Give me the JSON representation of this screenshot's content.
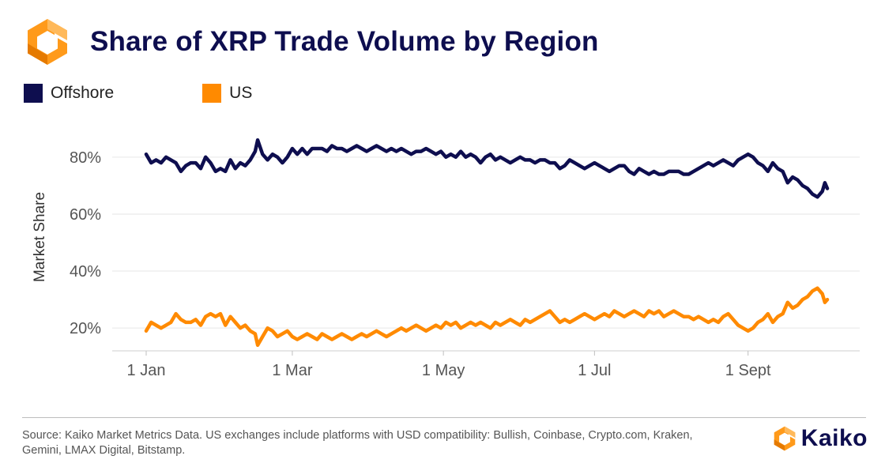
{
  "header": {
    "title": "Share of XRP Trade Volume by Region",
    "logo_icon": "kaiko-hexagon-icon"
  },
  "legend": [
    {
      "label": "Offshore",
      "color": "#0e0e4f"
    },
    {
      "label": "US",
      "color": "#ff8a00"
    }
  ],
  "chart_data": {
    "type": "line",
    "title": "Share of XRP Trade Volume by Region",
    "xlabel": "",
    "ylabel": "Market Share",
    "x_range": [
      1,
      276
    ],
    "x_ticks": [
      {
        "label": "1 Jan",
        "day": 1
      },
      {
        "label": "1 Mar",
        "day": 60
      },
      {
        "label": "1 May",
        "day": 121
      },
      {
        "label": "1 Jul",
        "day": 182
      },
      {
        "label": "1 Sept",
        "day": 244
      }
    ],
    "ylim": [
      12,
      88
    ],
    "y_ticks": [
      20,
      40,
      60,
      80
    ],
    "y_tick_format": "%",
    "grid": true,
    "legend_position": "top-left",
    "series": [
      {
        "name": "Offshore",
        "color": "#0e0e4f",
        "points": [
          [
            1,
            81
          ],
          [
            3,
            78
          ],
          [
            5,
            79
          ],
          [
            7,
            78
          ],
          [
            9,
            80
          ],
          [
            11,
            79
          ],
          [
            13,
            78
          ],
          [
            15,
            75
          ],
          [
            17,
            77
          ],
          [
            19,
            78
          ],
          [
            21,
            78
          ],
          [
            23,
            76
          ],
          [
            25,
            80
          ],
          [
            27,
            78
          ],
          [
            29,
            75
          ],
          [
            31,
            76
          ],
          [
            33,
            75
          ],
          [
            35,
            79
          ],
          [
            37,
            76
          ],
          [
            39,
            78
          ],
          [
            41,
            77
          ],
          [
            43,
            79
          ],
          [
            45,
            82
          ],
          [
            46,
            86
          ],
          [
            48,
            81
          ],
          [
            50,
            79
          ],
          [
            52,
            81
          ],
          [
            54,
            80
          ],
          [
            56,
            78
          ],
          [
            58,
            80
          ],
          [
            60,
            83
          ],
          [
            62,
            81
          ],
          [
            64,
            83
          ],
          [
            66,
            81
          ],
          [
            68,
            83
          ],
          [
            70,
            83
          ],
          [
            72,
            83
          ],
          [
            74,
            82
          ],
          [
            76,
            84
          ],
          [
            78,
            83
          ],
          [
            80,
            83
          ],
          [
            82,
            82
          ],
          [
            84,
            83
          ],
          [
            86,
            84
          ],
          [
            88,
            83
          ],
          [
            90,
            82
          ],
          [
            92,
            83
          ],
          [
            94,
            84
          ],
          [
            96,
            83
          ],
          [
            98,
            82
          ],
          [
            100,
            83
          ],
          [
            102,
            82
          ],
          [
            104,
            83
          ],
          [
            106,
            82
          ],
          [
            108,
            81
          ],
          [
            110,
            82
          ],
          [
            112,
            82
          ],
          [
            114,
            83
          ],
          [
            116,
            82
          ],
          [
            118,
            81
          ],
          [
            120,
            82
          ],
          [
            122,
            80
          ],
          [
            124,
            81
          ],
          [
            126,
            80
          ],
          [
            128,
            82
          ],
          [
            130,
            80
          ],
          [
            132,
            81
          ],
          [
            134,
            80
          ],
          [
            136,
            78
          ],
          [
            138,
            80
          ],
          [
            140,
            81
          ],
          [
            142,
            79
          ],
          [
            144,
            80
          ],
          [
            146,
            79
          ],
          [
            148,
            78
          ],
          [
            150,
            79
          ],
          [
            152,
            80
          ],
          [
            154,
            79
          ],
          [
            156,
            79
          ],
          [
            158,
            78
          ],
          [
            160,
            79
          ],
          [
            162,
            79
          ],
          [
            164,
            78
          ],
          [
            166,
            78
          ],
          [
            168,
            76
          ],
          [
            170,
            77
          ],
          [
            172,
            79
          ],
          [
            174,
            78
          ],
          [
            176,
            77
          ],
          [
            178,
            76
          ],
          [
            180,
            77
          ],
          [
            182,
            78
          ],
          [
            184,
            77
          ],
          [
            186,
            76
          ],
          [
            188,
            75
          ],
          [
            190,
            76
          ],
          [
            192,
            77
          ],
          [
            194,
            77
          ],
          [
            196,
            75
          ],
          [
            198,
            74
          ],
          [
            200,
            76
          ],
          [
            202,
            75
          ],
          [
            204,
            74
          ],
          [
            206,
            75
          ],
          [
            208,
            74
          ],
          [
            210,
            74
          ],
          [
            212,
            75
          ],
          [
            214,
            75
          ],
          [
            216,
            75
          ],
          [
            218,
            74
          ],
          [
            220,
            74
          ],
          [
            222,
            75
          ],
          [
            224,
            76
          ],
          [
            226,
            77
          ],
          [
            228,
            78
          ],
          [
            230,
            77
          ],
          [
            232,
            78
          ],
          [
            234,
            79
          ],
          [
            236,
            78
          ],
          [
            238,
            77
          ],
          [
            240,
            79
          ],
          [
            242,
            80
          ],
          [
            244,
            81
          ],
          [
            246,
            80
          ],
          [
            248,
            78
          ],
          [
            250,
            77
          ],
          [
            252,
            75
          ],
          [
            254,
            78
          ],
          [
            256,
            76
          ],
          [
            258,
            75
          ],
          [
            260,
            71
          ],
          [
            262,
            73
          ],
          [
            264,
            72
          ],
          [
            266,
            70
          ],
          [
            268,
            69
          ],
          [
            270,
            67
          ],
          [
            272,
            66
          ],
          [
            274,
            68
          ],
          [
            275,
            71
          ],
          [
            276,
            69
          ]
        ]
      },
      {
        "name": "US",
        "color": "#ff8a00",
        "points": [
          [
            1,
            19
          ],
          [
            3,
            22
          ],
          [
            5,
            21
          ],
          [
            7,
            20
          ],
          [
            9,
            21
          ],
          [
            11,
            22
          ],
          [
            13,
            25
          ],
          [
            15,
            23
          ],
          [
            17,
            22
          ],
          [
            19,
            22
          ],
          [
            21,
            23
          ],
          [
            23,
            21
          ],
          [
            25,
            24
          ],
          [
            27,
            25
          ],
          [
            29,
            24
          ],
          [
            31,
            25
          ],
          [
            33,
            21
          ],
          [
            35,
            24
          ],
          [
            37,
            22
          ],
          [
            39,
            20
          ],
          [
            41,
            21
          ],
          [
            43,
            19
          ],
          [
            45,
            18
          ],
          [
            46,
            14
          ],
          [
            48,
            17
          ],
          [
            50,
            20
          ],
          [
            52,
            19
          ],
          [
            54,
            17
          ],
          [
            56,
            18
          ],
          [
            58,
            19
          ],
          [
            60,
            17
          ],
          [
            62,
            16
          ],
          [
            64,
            17
          ],
          [
            66,
            18
          ],
          [
            68,
            17
          ],
          [
            70,
            16
          ],
          [
            72,
            18
          ],
          [
            74,
            17
          ],
          [
            76,
            16
          ],
          [
            78,
            17
          ],
          [
            80,
            18
          ],
          [
            82,
            17
          ],
          [
            84,
            16
          ],
          [
            86,
            17
          ],
          [
            88,
            18
          ],
          [
            90,
            17
          ],
          [
            92,
            18
          ],
          [
            94,
            19
          ],
          [
            96,
            18
          ],
          [
            98,
            17
          ],
          [
            100,
            18
          ],
          [
            102,
            19
          ],
          [
            104,
            20
          ],
          [
            106,
            19
          ],
          [
            108,
            20
          ],
          [
            110,
            21
          ],
          [
            112,
            20
          ],
          [
            114,
            19
          ],
          [
            116,
            20
          ],
          [
            118,
            21
          ],
          [
            120,
            20
          ],
          [
            122,
            22
          ],
          [
            124,
            21
          ],
          [
            126,
            22
          ],
          [
            128,
            20
          ],
          [
            130,
            21
          ],
          [
            132,
            22
          ],
          [
            134,
            21
          ],
          [
            136,
            22
          ],
          [
            138,
            21
          ],
          [
            140,
            20
          ],
          [
            142,
            22
          ],
          [
            144,
            21
          ],
          [
            146,
            22
          ],
          [
            148,
            23
          ],
          [
            150,
            22
          ],
          [
            152,
            21
          ],
          [
            154,
            23
          ],
          [
            156,
            22
          ],
          [
            158,
            23
          ],
          [
            160,
            24
          ],
          [
            162,
            25
          ],
          [
            164,
            26
          ],
          [
            166,
            24
          ],
          [
            168,
            22
          ],
          [
            170,
            23
          ],
          [
            172,
            22
          ],
          [
            174,
            23
          ],
          [
            176,
            24
          ],
          [
            178,
            25
          ],
          [
            180,
            24
          ],
          [
            182,
            23
          ],
          [
            184,
            24
          ],
          [
            186,
            25
          ],
          [
            188,
            24
          ],
          [
            190,
            26
          ],
          [
            192,
            25
          ],
          [
            194,
            24
          ],
          [
            196,
            25
          ],
          [
            198,
            26
          ],
          [
            200,
            25
          ],
          [
            202,
            24
          ],
          [
            204,
            26
          ],
          [
            206,
            25
          ],
          [
            208,
            26
          ],
          [
            210,
            24
          ],
          [
            212,
            25
          ],
          [
            214,
            26
          ],
          [
            216,
            25
          ],
          [
            218,
            24
          ],
          [
            220,
            24
          ],
          [
            222,
            23
          ],
          [
            224,
            24
          ],
          [
            226,
            23
          ],
          [
            228,
            22
          ],
          [
            230,
            23
          ],
          [
            232,
            22
          ],
          [
            234,
            24
          ],
          [
            236,
            25
          ],
          [
            238,
            23
          ],
          [
            240,
            21
          ],
          [
            242,
            20
          ],
          [
            244,
            19
          ],
          [
            246,
            20
          ],
          [
            248,
            22
          ],
          [
            250,
            23
          ],
          [
            252,
            25
          ],
          [
            254,
            22
          ],
          [
            256,
            24
          ],
          [
            258,
            25
          ],
          [
            260,
            29
          ],
          [
            262,
            27
          ],
          [
            264,
            28
          ],
          [
            266,
            30
          ],
          [
            268,
            31
          ],
          [
            270,
            33
          ],
          [
            272,
            34
          ],
          [
            274,
            32
          ],
          [
            275,
            29
          ],
          [
            276,
            30
          ]
        ]
      }
    ]
  },
  "footer": {
    "source": "Source: Kaiko Market Metrics Data. US exchanges include platforms with USD compatibility: Bullish, Coinbase, Crypto.com, Kraken, Gemini, LMAX Digital, Bitstamp.",
    "brand_name": "Kaiko",
    "brand_icon": "kaiko-hexagon-icon"
  }
}
